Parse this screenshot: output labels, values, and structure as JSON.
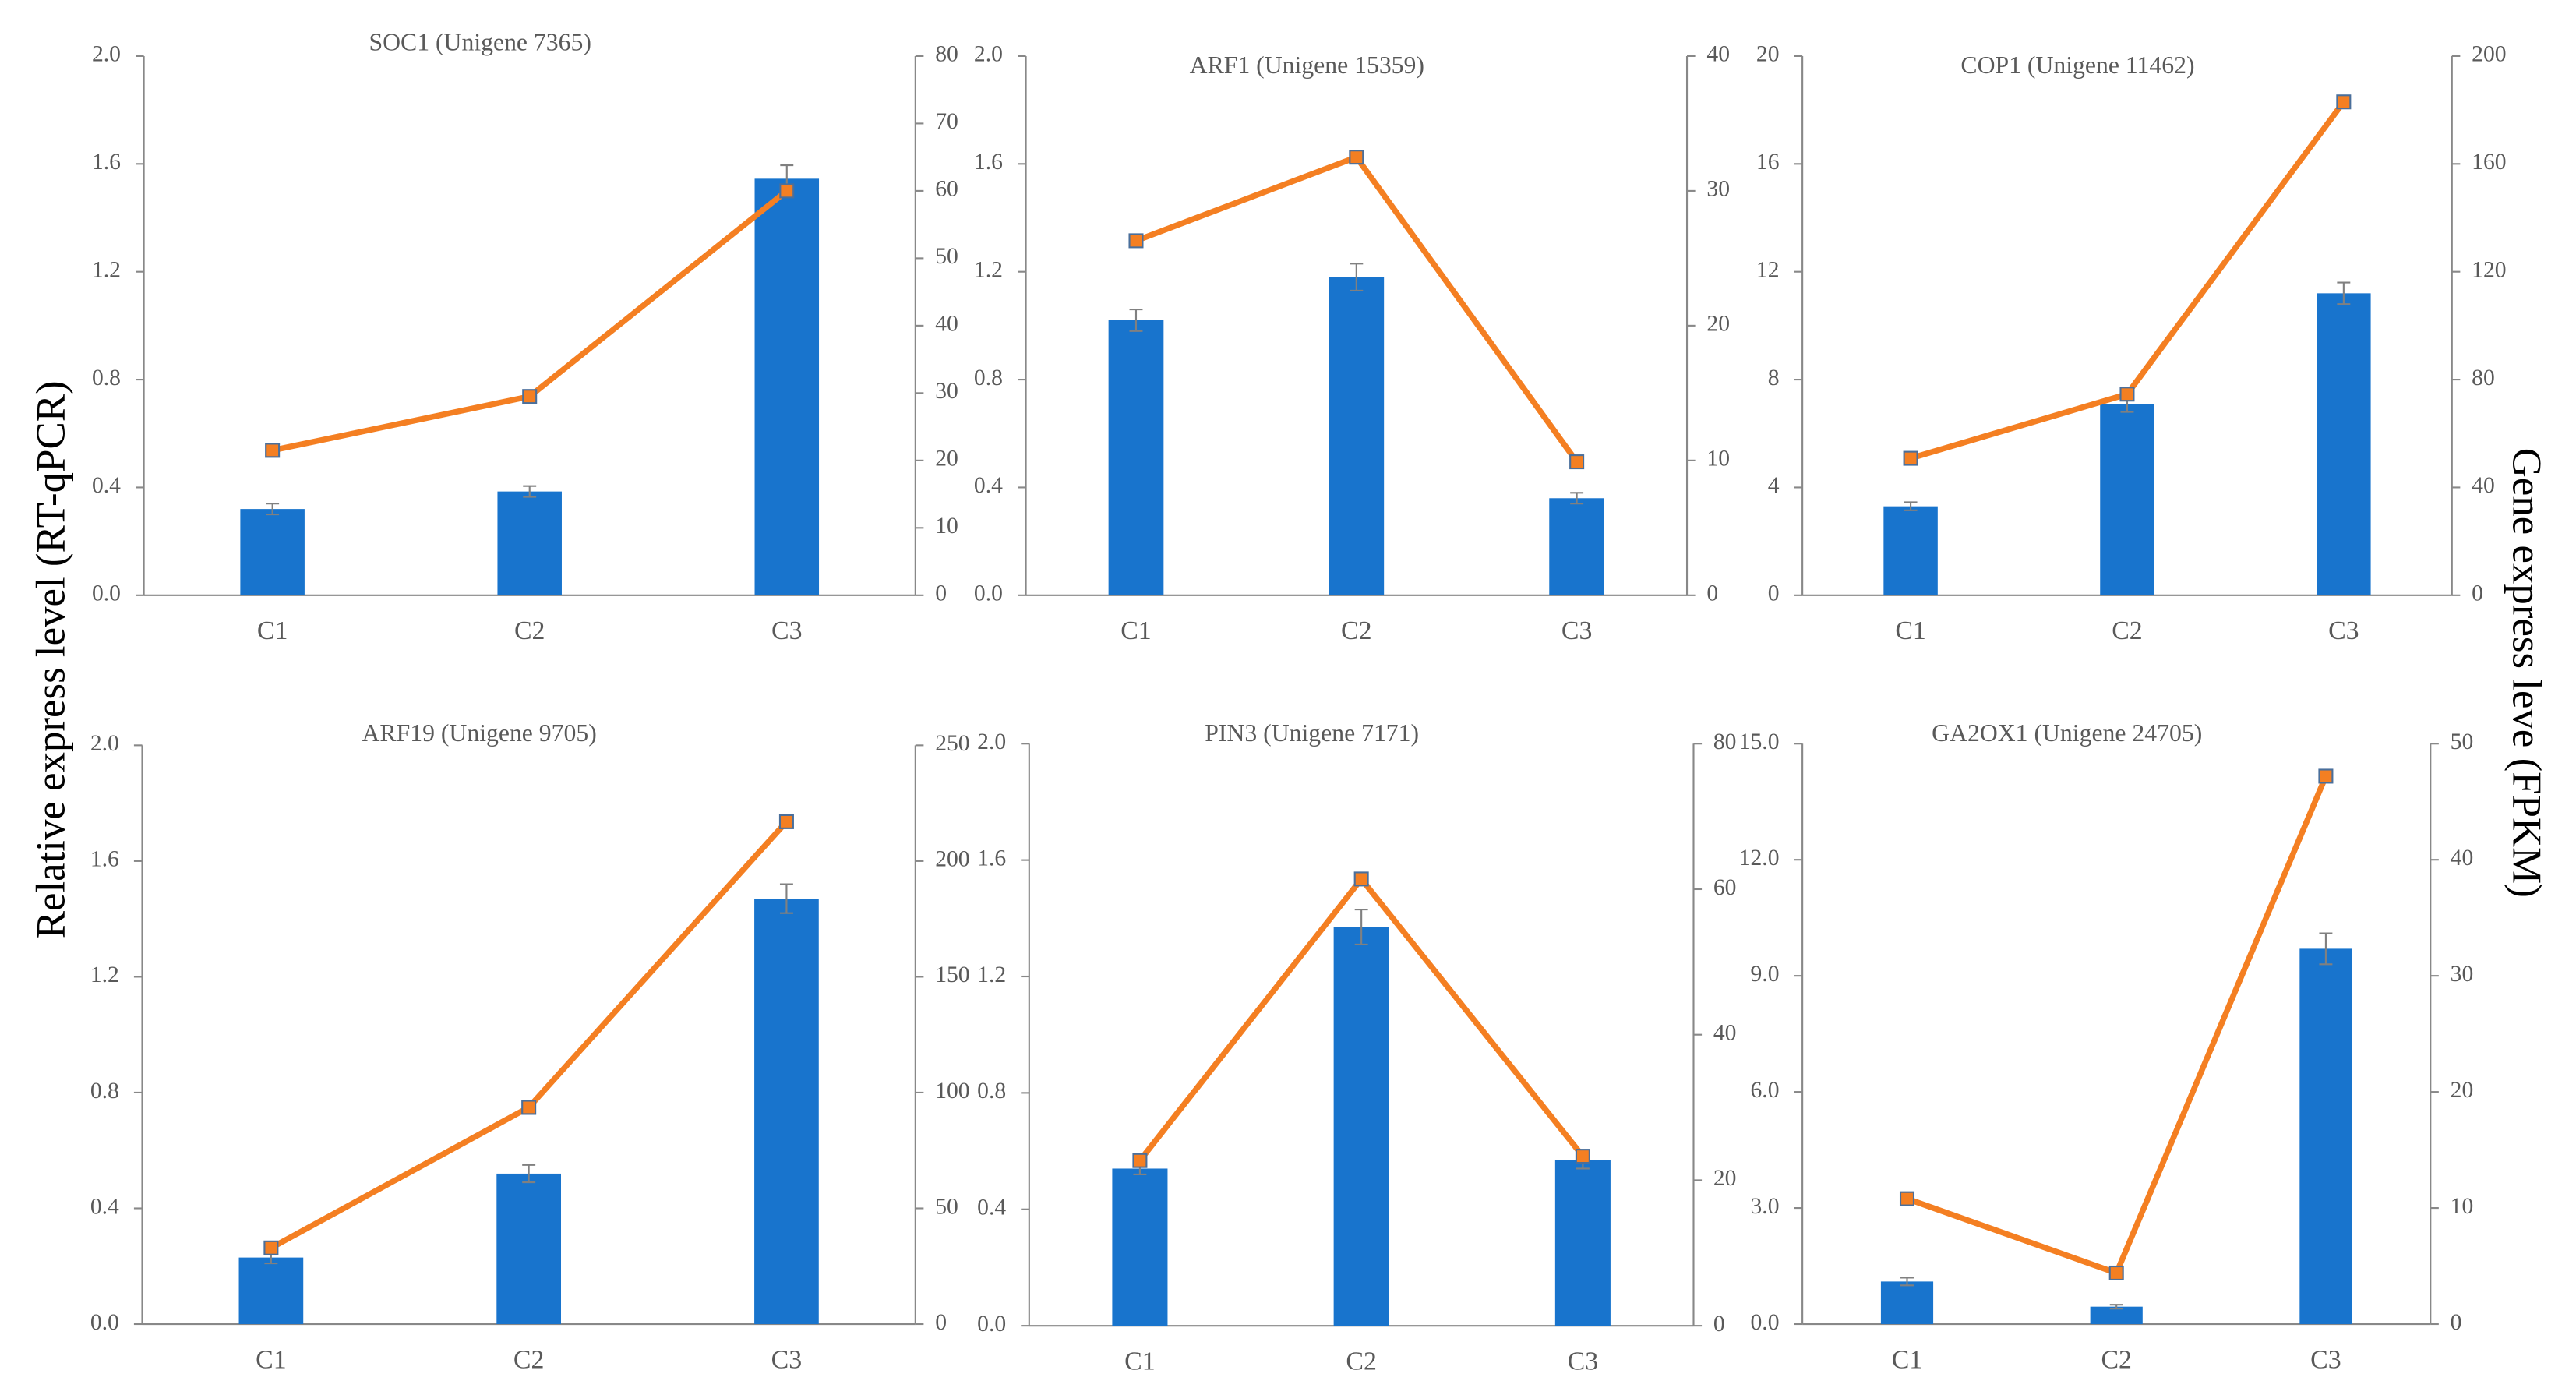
{
  "ylabel": "Relative express level (RT-qPCR)",
  "y2label": "Gene express leve (FPKM)",
  "chart_data": [
    {
      "type": "combo",
      "title": "SOC1 (Unigene 7365)",
      "categories": [
        "C1",
        "C2",
        "C3"
      ],
      "series": [
        {
          "color": "#1874cd",
          "values": [
            0.32,
            0.385,
            1.545
          ],
          "errors": [
            0.02,
            0.02,
            0.05
          ]
        },
        {
          "color": "#f47f22",
          "values": [
            21.5,
            29.5,
            60
          ],
          "axis": "y2"
        }
      ],
      "ylim": [
        0,
        2
      ],
      "yticks": [
        {
          "value": 0,
          "label": "0.0"
        },
        0.4,
        0.8,
        1.2,
        1.6,
        {
          "value": 2,
          "label": "2.0"
        }
      ],
      "y2lim": [
        0,
        80
      ],
      "y2ticks": [
        0,
        10,
        20,
        30,
        40,
        50,
        60,
        70,
        80
      ]
    },
    {
      "type": "combo",
      "title": "ARF1 (Unigene 15359)",
      "categories": [
        "C1",
        "C2",
        "C3"
      ],
      "series": [
        {
          "color": "#1874cd",
          "values": [
            1.02,
            1.18,
            0.36
          ],
          "errors": [
            0.04,
            0.05,
            0.02
          ]
        },
        {
          "color": "#f47f22",
          "values": [
            26.3,
            32.5,
            9.9
          ],
          "axis": "y2"
        }
      ],
      "ylim": [
        0,
        2
      ],
      "yticks": [
        {
          "value": 0,
          "label": "0.0"
        },
        0.4,
        0.8,
        1.2,
        1.6,
        {
          "value": 2,
          "label": "2.0"
        }
      ],
      "y2lim": [
        0,
        40
      ],
      "y2ticks": [
        0,
        10,
        20,
        30,
        40
      ]
    },
    {
      "type": "combo",
      "title": "COP1 (Unigene 11462)",
      "categories": [
        "C1",
        "C2",
        "C3"
      ],
      "series": [
        {
          "color": "#1874cd",
          "values": [
            3.3,
            7.1,
            11.2
          ],
          "errors": [
            0.15,
            0.3,
            0.4
          ]
        },
        {
          "color": "#f47f22",
          "values": [
            50.8,
            74.6,
            183
          ],
          "axis": "y2"
        }
      ],
      "ylim": [
        0,
        20
      ],
      "yticks": [
        0,
        4,
        8,
        12,
        16,
        20
      ],
      "y2lim": [
        0,
        200
      ],
      "y2ticks": [
        0,
        40,
        80,
        120,
        160,
        200
      ]
    },
    {
      "type": "combo",
      "title": "ARF19 (Unigene 9705)",
      "categories": [
        "C1",
        "C2",
        "C3"
      ],
      "series": [
        {
          "color": "#1874cd",
          "values": [
            0.23,
            0.52,
            1.47
          ],
          "errors": [
            0.02,
            0.03,
            0.05
          ]
        },
        {
          "color": "#f47f22",
          "values": [
            32.9,
            93.6,
            217
          ],
          "axis": "y2"
        }
      ],
      "ylim": [
        0,
        2
      ],
      "yticks": [
        {
          "value": 0,
          "label": "0.0"
        },
        0.4,
        0.8,
        1.2,
        1.6,
        {
          "value": 2,
          "label": "2.0"
        }
      ],
      "y2lim": [
        0,
        250
      ],
      "y2ticks": [
        0,
        50,
        100,
        150,
        200,
        250
      ]
    },
    {
      "type": "combo",
      "title": "PIN3 (Unigene 7171)",
      "categories": [
        "C1",
        "C2",
        "C3"
      ],
      "series": [
        {
          "color": "#1874cd",
          "values": [
            0.54,
            1.37,
            0.57
          ],
          "errors": [
            0.02,
            0.06,
            0.03
          ]
        },
        {
          "color": "#f47f22",
          "values": [
            22.7,
            61.4,
            23.3
          ],
          "axis": "y2"
        }
      ],
      "ylim": [
        0,
        2
      ],
      "yticks": [
        {
          "value": 0,
          "label": "0.0"
        },
        0.4,
        0.8,
        1.2,
        1.6,
        {
          "value": 2,
          "label": "2.0"
        }
      ],
      "y2lim": [
        0,
        80
      ],
      "y2ticks": [
        0,
        20,
        40,
        60,
        80
      ]
    },
    {
      "type": "combo",
      "title": "GA2OX1 (Unigene 24705)",
      "categories": [
        "C1",
        "C2",
        "C3"
      ],
      "series": [
        {
          "color": "#1874cd",
          "values": [
            1.1,
            0.45,
            9.7
          ],
          "errors": [
            0.1,
            0.05,
            0.4
          ]
        },
        {
          "color": "#f47f22",
          "values": [
            10.8,
            4.4,
            47.2
          ],
          "axis": "y2"
        }
      ],
      "ylim": [
        0,
        15
      ],
      "yticks": [
        {
          "value": 0,
          "label": "0.0"
        },
        {
          "value": 3,
          "label": "3.0"
        },
        {
          "value": 6,
          "label": "6.0"
        },
        {
          "value": 9,
          "label": "9.0"
        },
        {
          "value": 12,
          "label": "12.0"
        },
        {
          "value": 15,
          "label": "15.0"
        }
      ],
      "y2lim": [
        0,
        50
      ],
      "y2ticks": [
        0,
        10,
        20,
        30,
        40,
        50
      ]
    }
  ]
}
